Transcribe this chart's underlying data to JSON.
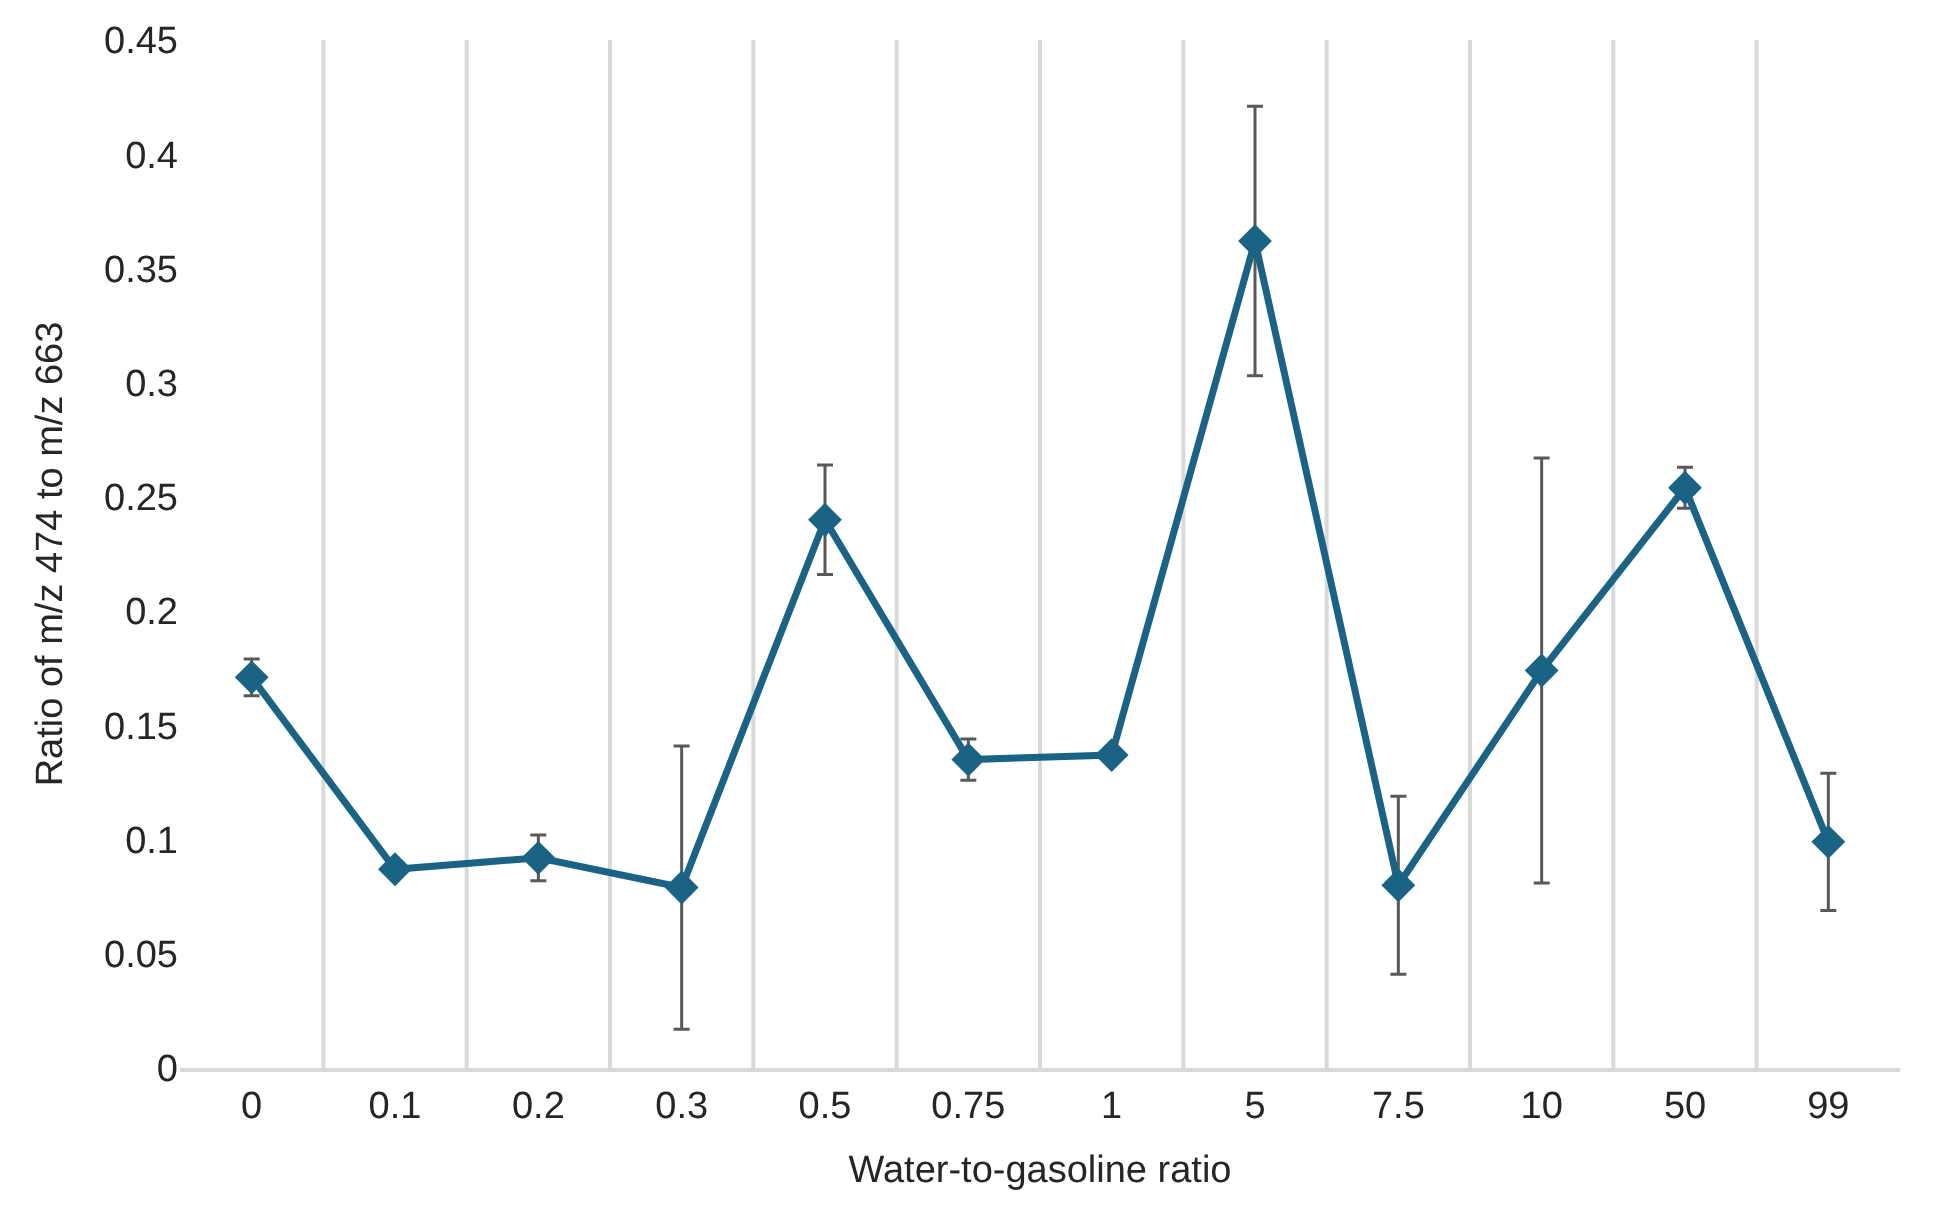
{
  "chart_data": {
    "type": "line",
    "xlabel": "Water-to-gasoline ratio",
    "ylabel": "Ratio of m/z 474 to m/z 663",
    "categories": [
      "0",
      "0.1",
      "0.2",
      "0.3",
      "0.5",
      "0.75",
      "1",
      "5",
      "7.5",
      "10",
      "50",
      "99"
    ],
    "series": [
      {
        "color": "#1a6385",
        "values": [
          0.171,
          0.087,
          0.092,
          0.079,
          0.24,
          0.135,
          0.137,
          0.362,
          0.08,
          0.174,
          0.254,
          0.099
        ],
        "errors": [
          0.008,
          null,
          0.01,
          0.062,
          0.024,
          0.009,
          null,
          0.059,
          0.039,
          0.093,
          0.009,
          0.03
        ]
      }
    ],
    "ylim": [
      0,
      0.45
    ],
    "yticks": [
      0,
      0.05,
      0.1,
      0.15,
      0.2,
      0.25,
      0.3,
      0.35,
      0.4,
      0.45
    ],
    "grid": "x",
    "marker": "diamond",
    "line_style": "solid"
  }
}
